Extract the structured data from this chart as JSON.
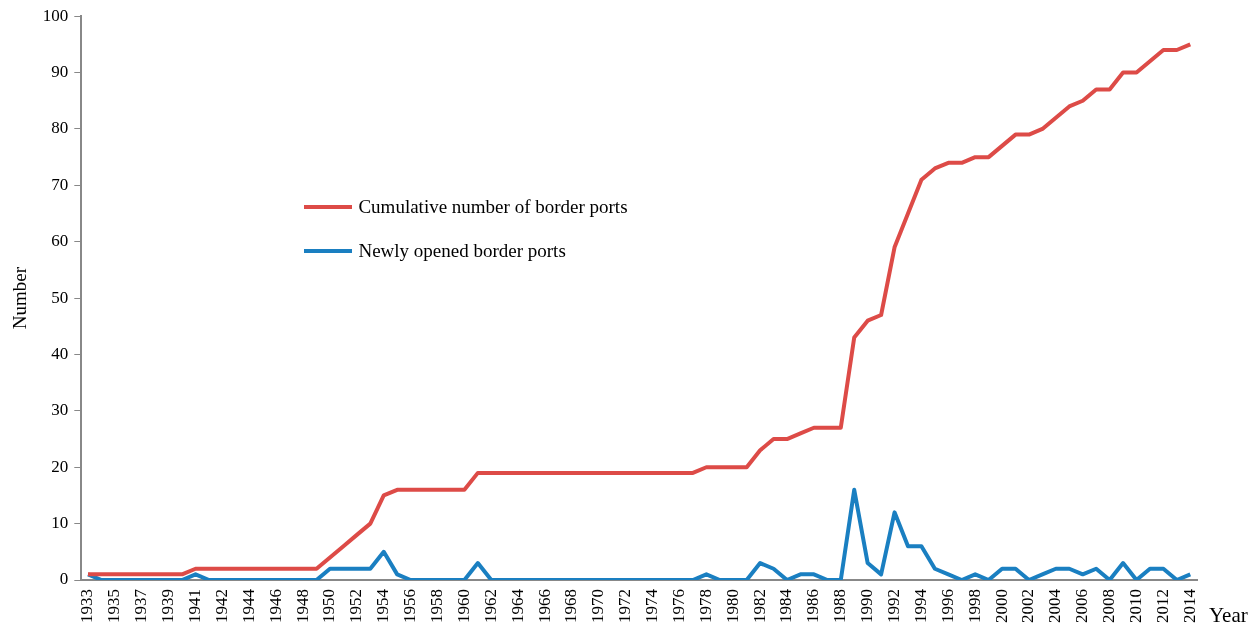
{
  "chart_data": {
    "type": "line",
    "categories": [
      "1933",
      null,
      "1935",
      null,
      "1937",
      null,
      "1939",
      null,
      "1941",
      null,
      "1942",
      null,
      "1944",
      null,
      "1946",
      null,
      "1948",
      null,
      "1950",
      null,
      "1952",
      null,
      "1954",
      null,
      "1956",
      null,
      "1958",
      null,
      "1960",
      null,
      "1962",
      null,
      "1964",
      null,
      "1966",
      null,
      "1968",
      null,
      "1970",
      null,
      "1972",
      null,
      "1974",
      null,
      "1976",
      null,
      "1978",
      null,
      "1980",
      null,
      "1982",
      null,
      "1984",
      null,
      "1986",
      null,
      "1988",
      null,
      "1990",
      null,
      "1992",
      null,
      "1994",
      null,
      "1996",
      null,
      "1998",
      null,
      "2000",
      null,
      "2002",
      null,
      "2004",
      null,
      "2006",
      null,
      "2008",
      null,
      "2010",
      null,
      "2012",
      null,
      "2014"
    ],
    "series": [
      {
        "name": "Cumulative number of border ports",
        "color": "#dd4b47",
        "values": [
          1,
          1,
          1,
          1,
          1,
          1,
          1,
          1,
          2,
          2,
          2,
          2,
          2,
          2,
          2,
          2,
          2,
          2,
          4,
          6,
          8,
          10,
          15,
          16,
          16,
          16,
          16,
          16,
          16,
          19,
          19,
          19,
          19,
          19,
          19,
          19,
          19,
          19,
          19,
          19,
          19,
          19,
          19,
          19,
          19,
          19,
          20,
          20,
          20,
          20,
          23,
          25,
          25,
          26,
          27,
          27,
          27,
          43,
          46,
          47,
          59,
          65,
          71,
          73,
          74,
          74,
          75,
          75,
          77,
          79,
          79,
          80,
          82,
          84,
          85,
          87,
          87,
          90,
          90,
          92,
          94,
          94,
          95
        ]
      },
      {
        "name": "Newly opened border ports",
        "color": "#1a7fc1",
        "values": [
          1,
          0,
          0,
          0,
          0,
          0,
          0,
          0,
          1,
          0,
          0,
          0,
          0,
          0,
          0,
          0,
          0,
          0,
          2,
          2,
          2,
          2,
          5,
          1,
          0,
          0,
          0,
          0,
          0,
          3,
          0,
          0,
          0,
          0,
          0,
          0,
          0,
          0,
          0,
          0,
          0,
          0,
          0,
          0,
          0,
          0,
          1,
          0,
          0,
          0,
          3,
          2,
          0,
          1,
          1,
          0,
          0,
          16,
          3,
          1,
          12,
          6,
          6,
          2,
          1,
          0,
          1,
          0,
          2,
          2,
          0,
          1,
          2,
          2,
          1,
          2,
          0,
          3,
          0,
          2,
          2,
          0,
          1
        ]
      }
    ],
    "xlabel": "Year",
    "ylabel": "Number",
    "ylim": [
      0,
      100
    ],
    "yticks": [
      0,
      10,
      20,
      30,
      40,
      50,
      60,
      70,
      80,
      90,
      100
    ],
    "grid": false,
    "legend": "top left",
    "marker": "none",
    "line_style": "solid"
  }
}
